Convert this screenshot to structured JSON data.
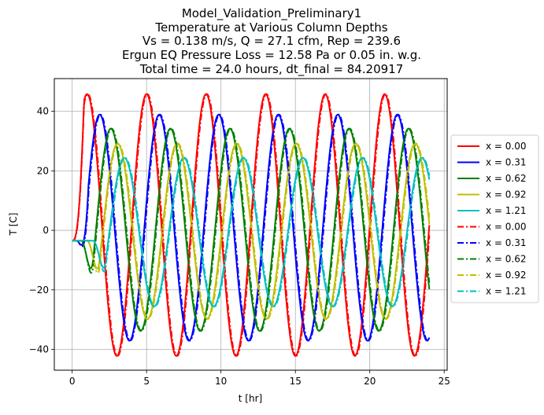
{
  "chart_data": {
    "type": "line",
    "title_lines": [
      "Model_Validation_Preliminary1",
      "Temperature at Various Column Depths",
      "Vs = 0.138 m/s, Q = 27.1 cfm, Rep = 239.6",
      "Ergun EQ Pressure Loss = 12.58 Pa or 0.05 in. w.g.",
      "Total time = 24.0 hours, dt_final = 84.20917"
    ],
    "xlabel": "t [hr]",
    "ylabel": "T [C]",
    "xlim": [
      -1.2,
      25.2
    ],
    "ylim": [
      -47,
      51
    ],
    "xticks": [
      0,
      5,
      10,
      15,
      20,
      25
    ],
    "xtick_labels": [
      "0",
      "5",
      "10",
      "15",
      "20",
      "25"
    ],
    "yticks": [
      -40,
      -20,
      0,
      20,
      40
    ],
    "ytick_labels": [
      "−40",
      "−20",
      "0",
      "20",
      "40"
    ],
    "grid": true,
    "legend_position": "right, outside axes",
    "period_hr": 4.0,
    "t_range": [
      0,
      24
    ],
    "series": [
      {
        "name": "x = 0.00",
        "color": "#ff0000",
        "style": "solid",
        "start": -3.5,
        "amp": 44.0,
        "offset": 1.8,
        "peak_t": 1.0,
        "lag_hr": 0.0
      },
      {
        "name": "x = 0.31",
        "color": "#0000ff",
        "style": "solid",
        "start": -3.5,
        "amp": 38.0,
        "offset": 0.9,
        "peak_t": 1.85,
        "lag_hr": 0.3
      },
      {
        "name": "x = 0.62",
        "color": "#008000",
        "style": "solid",
        "start": -3.5,
        "amp": 34.0,
        "offset": 0.2,
        "peak_t": 2.6,
        "lag_hr": 0.6
      },
      {
        "name": "x = 0.92",
        "color": "#bfbf00",
        "style": "solid",
        "start": -3.5,
        "amp": 29.5,
        "offset": -0.3,
        "peak_t": 3.05,
        "lag_hr": 1.0
      },
      {
        "name": "x = 1.21",
        "color": "#00bfbf",
        "style": "solid",
        "start": -3.5,
        "amp": 25.0,
        "offset": -0.6,
        "peak_t": 3.5,
        "lag_hr": 1.4
      },
      {
        "name": "x = 0.00",
        "color": "#ff0000",
        "style": "dashdot",
        "start": -3.5,
        "amp": 44.0,
        "offset": 1.8,
        "peak_t": 1.05,
        "lag_hr": 0.0
      },
      {
        "name": "x = 0.31",
        "color": "#0000ff",
        "style": "dashdot",
        "start": -3.5,
        "amp": 38.0,
        "offset": 0.9,
        "peak_t": 1.9,
        "lag_hr": 0.3
      },
      {
        "name": "x = 0.62",
        "color": "#008000",
        "style": "dashdot",
        "start": -3.5,
        "amp": 34.0,
        "offset": 0.2,
        "peak_t": 2.65,
        "lag_hr": 0.6
      },
      {
        "name": "x = 0.92",
        "color": "#bfbf00",
        "style": "dashdot",
        "start": -3.5,
        "amp": 29.5,
        "offset": -0.3,
        "peak_t": 3.1,
        "lag_hr": 1.0
      },
      {
        "name": "x = 1.21",
        "color": "#00bfbf",
        "style": "dashdot",
        "start": -3.5,
        "amp": 25.0,
        "offset": -0.6,
        "peak_t": 3.55,
        "lag_hr": 1.4
      }
    ]
  }
}
